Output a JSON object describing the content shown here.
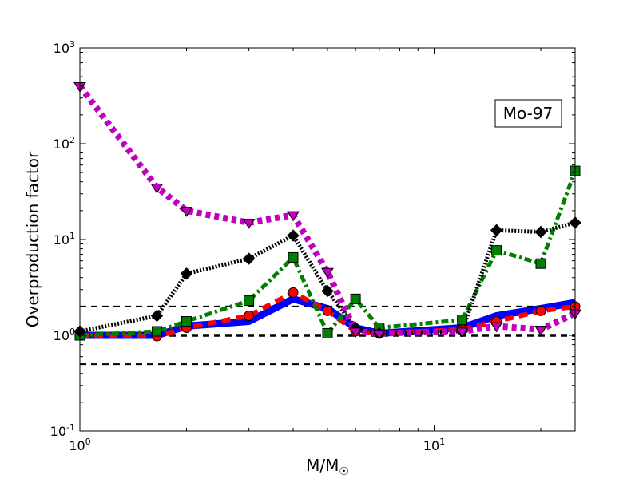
{
  "chart_data": {
    "type": "line",
    "title": "",
    "xlabel": "M/M",
    "xlabel_sub": "☉",
    "ylabel": "Overproduction factor",
    "x_scale": "log",
    "y_scale": "log",
    "xlim": [
      1,
      25
    ],
    "ylim": [
      0.1,
      1000
    ],
    "x_ticks": [
      {
        "value": 1,
        "base": "10",
        "exp": "0"
      },
      {
        "value": 10,
        "base": "10",
        "exp": "1"
      }
    ],
    "y_ticks": [
      {
        "value": 0.1,
        "base": "10",
        "exp": "-1"
      },
      {
        "value": 1,
        "base": "10",
        "exp": "0"
      },
      {
        "value": 10,
        "base": "10",
        "exp": "1"
      },
      {
        "value": 100,
        "base": "10",
        "exp": "2"
      },
      {
        "value": 1000,
        "base": "10",
        "exp": "3"
      }
    ],
    "annotation": "Mo-97",
    "reference_lines": [
      {
        "y": 2.0,
        "width": 2
      },
      {
        "y": 1.0,
        "width": 3.5
      },
      {
        "y": 0.5,
        "width": 2
      }
    ],
    "series": [
      {
        "color": "#0000ff",
        "dash": "",
        "width": 9,
        "marker": "none",
        "x": [
          1,
          1.65,
          2,
          3,
          4,
          5,
          6,
          7,
          12,
          15,
          20,
          25
        ],
        "y": [
          1.0,
          1.0,
          1.25,
          1.4,
          2.4,
          1.9,
          1.2,
          1.05,
          1.2,
          1.6,
          1.9,
          2.2
        ]
      },
      {
        "color": "#ff0000",
        "dash": "11,7",
        "width": 6,
        "marker": "circle",
        "x": [
          1,
          1.65,
          2,
          3,
          4,
          5,
          6,
          7,
          12,
          15,
          20,
          25
        ],
        "y": [
          1.0,
          0.98,
          1.2,
          1.6,
          2.8,
          1.8,
          1.1,
          1.05,
          1.15,
          1.4,
          1.8,
          2.0
        ]
      },
      {
        "color": "#007f00",
        "dash": "9,4,3,4",
        "width": 5,
        "marker": "square",
        "x": [
          1,
          1.65,
          2,
          3,
          4,
          5,
          6,
          7,
          12,
          15,
          20,
          25
        ],
        "y": [
          1.0,
          1.1,
          1.4,
          2.3,
          6.5,
          1.05,
          2.4,
          1.2,
          1.45,
          7.7,
          5.6,
          52
        ]
      },
      {
        "color": "#000000",
        "dash": "2,2",
        "width": 5,
        "marker": "diamond",
        "x": [
          1,
          1.65,
          2,
          3,
          4,
          5,
          6,
          7,
          12,
          15,
          20,
          25
        ],
        "y": [
          1.1,
          1.6,
          4.4,
          6.3,
          11,
          2.9,
          1.2,
          1.05,
          1.1,
          12.5,
          12,
          15
        ]
      },
      {
        "color": "#bf00bf",
        "dash": "6,5",
        "width": 8,
        "marker": "triangle-down",
        "x": [
          1,
          1.65,
          2,
          3,
          4,
          5,
          6,
          7,
          12,
          15,
          20,
          25
        ],
        "y": [
          400,
          35,
          20,
          15,
          18,
          4.6,
          1.1,
          1.05,
          1.1,
          1.25,
          1.15,
          1.7
        ]
      }
    ]
  }
}
